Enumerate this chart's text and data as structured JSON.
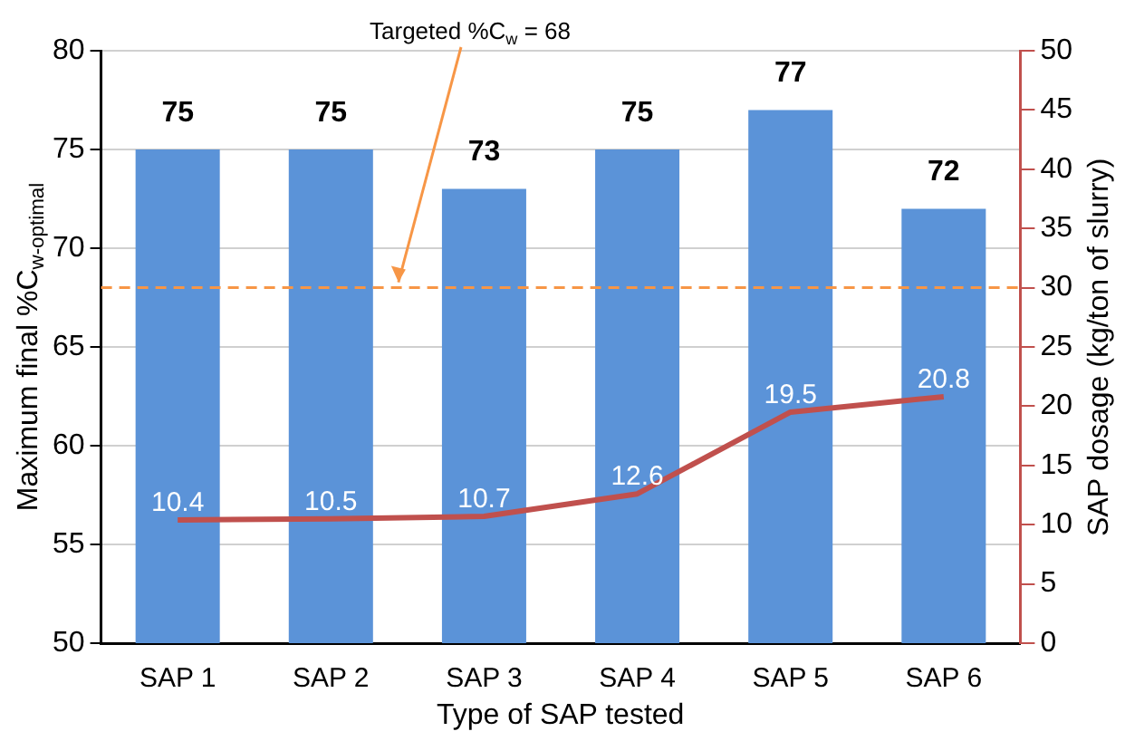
{
  "chart_data": {
    "type": "bar",
    "xlabel": "Type of SAP tested",
    "ylabel": "Maximum final %C$_{w-optimal}$",
    "y2label": "SAP dosage (kg/ton of slurry)",
    "categories": [
      "SAP 1",
      "SAP 2",
      "SAP 3",
      "SAP 4",
      "SAP 5",
      "SAP 6"
    ],
    "series": [
      {
        "color": "#5b93d8",
        "values": [
          75,
          75,
          73,
          75,
          77,
          72
        ]
      },
      {
        "type": "line",
        "axis": "y2",
        "color": "#c0504d",
        "values": [
          10.4,
          10.5,
          10.7,
          12.6,
          19.5,
          20.8
        ]
      }
    ],
    "ylim": [
      50,
      80
    ],
    "yticks": [
      50,
      55,
      60,
      65,
      70,
      75,
      80
    ],
    "y2lim": [
      0,
      50
    ],
    "y2ticks": [
      0,
      5,
      10,
      15,
      20,
      25,
      30,
      35,
      40,
      45,
      50
    ],
    "ref_lines": [
      {
        "axis": "y",
        "value": 68,
        "label": "Targeted %C$_{w}$ = 68",
        "color": "#f79646",
        "line_style": "dashed"
      }
    ],
    "grid": "y",
    "legend": false,
    "data_labels": true
  }
}
